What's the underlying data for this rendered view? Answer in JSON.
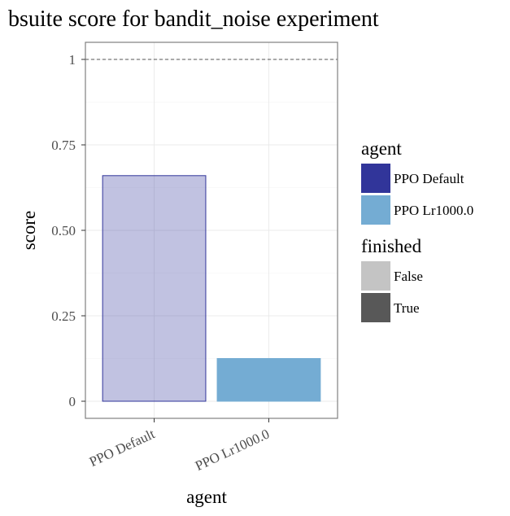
{
  "chart_data": {
    "type": "bar",
    "title": "bsuite score for bandit_noise experiment",
    "xlabel": "agent",
    "ylabel": "score",
    "categories": [
      "PPO Default",
      "PPO Lr1000.0"
    ],
    "values": [
      0.66,
      0.125
    ],
    "finished": [
      "False",
      "True"
    ],
    "ylim": [
      -0.05,
      1.05
    ],
    "yticks": [
      0,
      0.25,
      0.5,
      0.75,
      1
    ],
    "ytick_labels": [
      "0",
      "0.25",
      "0.50",
      "0.75",
      "1"
    ],
    "reference_line": 1,
    "grid": true,
    "legend_position": "right",
    "legends": [
      {
        "title": "agent",
        "items": [
          {
            "label": "PPO Default",
            "color": "#31359a"
          },
          {
            "label": "PPO Lr1000.0",
            "color": "#74acd3"
          }
        ]
      },
      {
        "title": "finished",
        "items": [
          {
            "label": "False",
            "color": "#c4c4c4"
          },
          {
            "label": "True",
            "color": "#585858"
          }
        ]
      }
    ],
    "bar_colors": [
      "#31359a",
      "#74acd3"
    ],
    "bar_alpha": [
      0.3,
      1.0
    ]
  }
}
